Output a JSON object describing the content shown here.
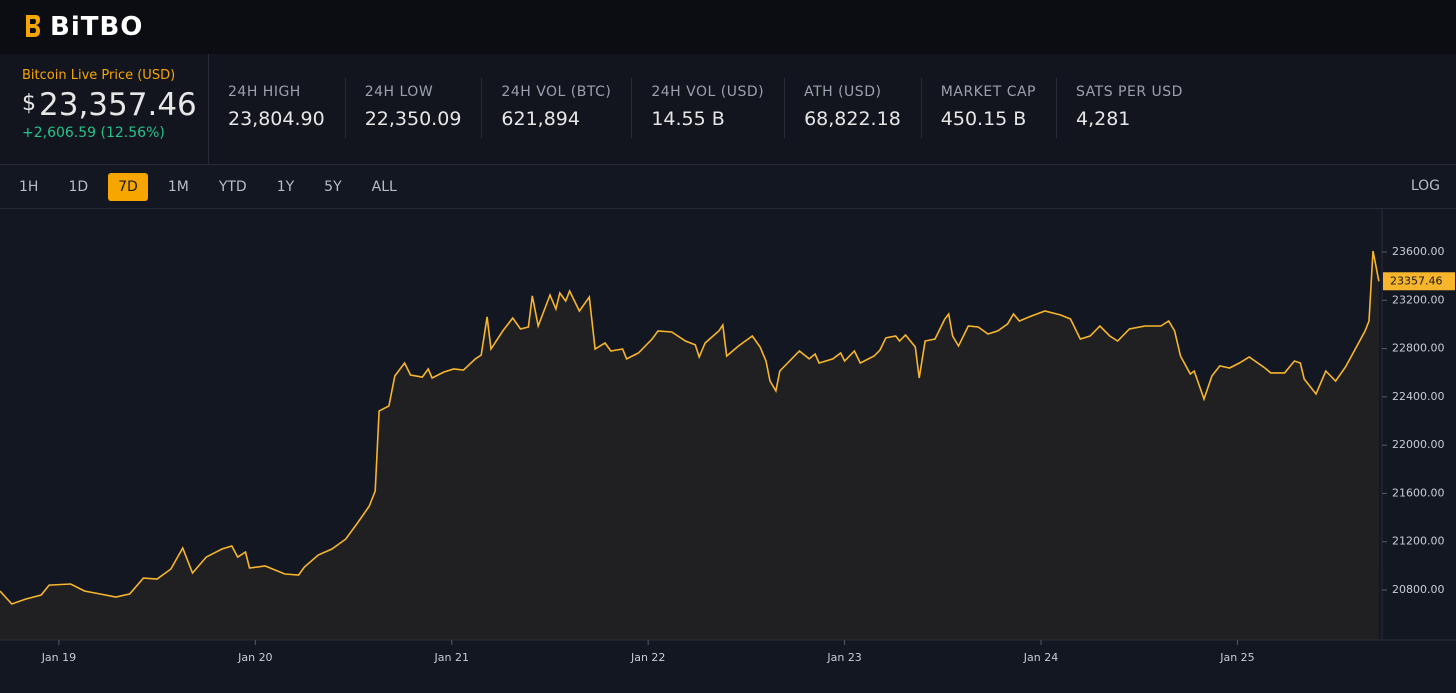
{
  "header": {
    "logo": "BiTBO"
  },
  "price": {
    "label": "Bitcoin Live Price (USD)",
    "currency": "$",
    "value": "23,357.46",
    "change": "+2,606.59 (12.56%)"
  },
  "stats": [
    {
      "label": "24H HIGH",
      "value": "23,804.90"
    },
    {
      "label": "24H LOW",
      "value": "22,350.09"
    },
    {
      "label": "24H VOL (BTC)",
      "value": "621,894"
    },
    {
      "label": "24H VOL (USD)",
      "value": "14.55 B"
    },
    {
      "label": "ATH (USD)",
      "value": "68,822.18"
    },
    {
      "label": "MARKET CAP",
      "value": "450.15 B"
    },
    {
      "label": "SATS PER USD",
      "value": "4,281"
    }
  ],
  "ranges": [
    "1H",
    "1D",
    "7D",
    "1M",
    "YTD",
    "1Y",
    "5Y",
    "ALL"
  ],
  "active_range": "7D",
  "log_toggle": "LOG",
  "chart_data": {
    "type": "line",
    "x": [
      18.7,
      18.76,
      18.83,
      18.91,
      18.95,
      19.06,
      19.13,
      19.21,
      19.29,
      19.36,
      19.43,
      19.5,
      19.57,
      19.63,
      19.68,
      19.75,
      19.83,
      19.88,
      19.91,
      19.95,
      19.97,
      20.05,
      20.15,
      20.22,
      20.25,
      20.32,
      20.39,
      20.46,
      20.52,
      20.58,
      20.61,
      20.63,
      20.68,
      20.71,
      20.76,
      20.79,
      20.85,
      20.88,
      20.9,
      20.96,
      21.01,
      21.06,
      21.12,
      21.15,
      21.18,
      21.2,
      21.26,
      21.31,
      21.35,
      21.39,
      21.41,
      21.44,
      21.5,
      21.53,
      21.55,
      21.58,
      21.6,
      21.65,
      21.7,
      21.73,
      21.78,
      21.81,
      21.87,
      21.89,
      21.95,
      22.02,
      22.05,
      22.12,
      22.19,
      22.24,
      22.26,
      22.29,
      22.36,
      22.38,
      22.4,
      22.46,
      22.53,
      22.57,
      22.6,
      22.62,
      22.65,
      22.67,
      22.72,
      22.77,
      22.82,
      22.85,
      22.87,
      22.94,
      22.98,
      23.0,
      23.05,
      23.08,
      23.15,
      23.18,
      23.21,
      23.26,
      23.28,
      23.31,
      23.36,
      23.38,
      23.41,
      23.46,
      23.51,
      23.53,
      23.55,
      23.58,
      23.63,
      23.68,
      23.73,
      23.78,
      23.83,
      23.86,
      23.89,
      23.94,
      24.02,
      24.1,
      24.15,
      24.2,
      24.25,
      24.3,
      24.35,
      24.39,
      24.45,
      24.53,
      24.61,
      24.65,
      24.68,
      24.71,
      24.76,
      24.78,
      24.83,
      24.87,
      24.91,
      24.96,
      25.01,
      25.06,
      25.14,
      25.17,
      25.24,
      25.29,
      25.32,
      25.34,
      25.4,
      25.45,
      25.5,
      25.55,
      25.6,
      25.65,
      25.67,
      25.69,
      25.72
    ],
    "series": [
      {
        "color": "#f7b52b",
        "values": [
          20792,
          20684,
          20725,
          20759,
          20841,
          20850,
          20792,
          20767,
          20742,
          20767,
          20899,
          20891,
          20974,
          21148,
          20941,
          21073,
          21140,
          21165,
          21073,
          21115,
          20982,
          20999,
          20933,
          20924,
          20991,
          21090,
          21140,
          21222,
          21355,
          21496,
          21620,
          22283,
          22324,
          22573,
          22680,
          22581,
          22564,
          22631,
          22556,
          22606,
          22631,
          22622,
          22714,
          22747,
          23062,
          22796,
          22946,
          23053,
          22962,
          22979,
          23236,
          22987,
          23244,
          23128,
          23260,
          23194,
          23277,
          23111,
          23227,
          22796,
          22846,
          22780,
          22796,
          22714,
          22763,
          22879,
          22946,
          22937,
          22863,
          22830,
          22730,
          22846,
          22946,
          22995,
          22738,
          22821,
          22904,
          22813,
          22697,
          22531,
          22449,
          22614,
          22697,
          22780,
          22714,
          22755,
          22680,
          22714,
          22763,
          22697,
          22780,
          22680,
          22738,
          22788,
          22888,
          22904,
          22863,
          22912,
          22813,
          22556,
          22863,
          22879,
          23045,
          23086,
          22904,
          22821,
          22987,
          22979,
          22921,
          22946,
          23004,
          23086,
          23028,
          23062,
          23111,
          23078,
          23045,
          22879,
          22904,
          22987,
          22904,
          22863,
          22962,
          22987,
          22987,
          23028,
          22946,
          22738,
          22589,
          22614,
          22382,
          22573,
          22656,
          22639,
          22680,
          22730,
          22639,
          22598,
          22598,
          22697,
          22680,
          22548,
          22424,
          22614,
          22531,
          22647,
          22796,
          22946,
          23028,
          23608,
          23357.46
        ]
      }
    ],
    "xlim": [
      18.7,
      25.736
    ],
    "xticks": [
      {
        "value": 19,
        "label": "Jan 19"
      },
      {
        "value": 20,
        "label": "Jan 20"
      },
      {
        "value": 21,
        "label": "Jan 21"
      },
      {
        "value": 22,
        "label": "Jan 22"
      },
      {
        "value": 23,
        "label": "Jan 23"
      },
      {
        "value": 24,
        "label": "Jan 24"
      },
      {
        "value": 25,
        "label": "Jan 25"
      }
    ],
    "ylim": [
      20386,
      23956
    ],
    "yticks": [
      {
        "value": 20800,
        "label": "20800.00"
      },
      {
        "value": 21200,
        "label": "21200.00"
      },
      {
        "value": 21600,
        "label": "21600.00"
      },
      {
        "value": 22000,
        "label": "22000.00"
      },
      {
        "value": 22400,
        "label": "22400.00"
      },
      {
        "value": 22800,
        "label": "22800.00"
      },
      {
        "value": 23200,
        "label": "23200.00"
      },
      {
        "value": 23600,
        "label": "23600.00"
      }
    ],
    "last_value": {
      "value": 23357.46,
      "label": "23357.46"
    },
    "grid": false
  }
}
